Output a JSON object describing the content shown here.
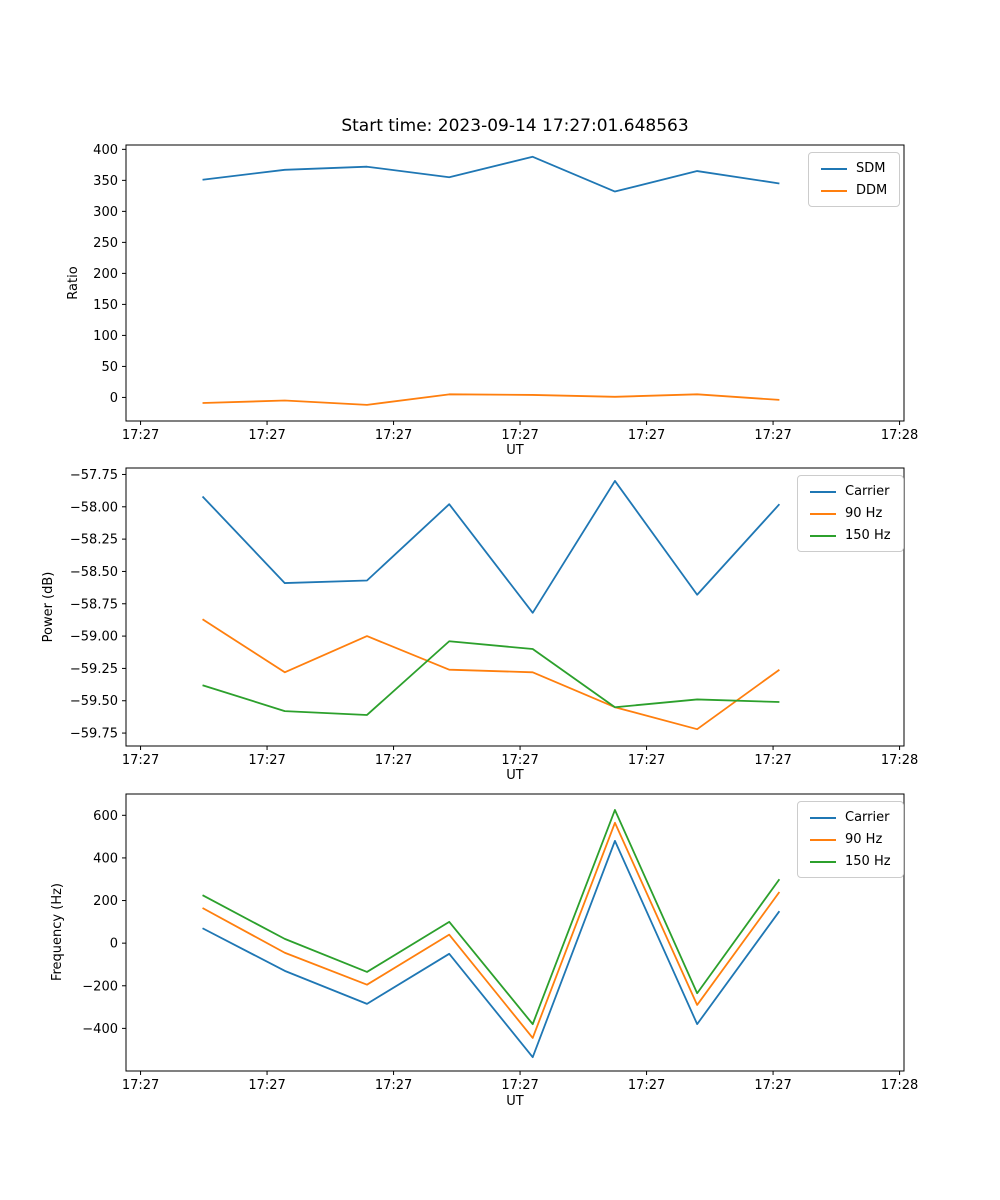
{
  "figure": {
    "title": "Start time: 2023-09-14 17:27:01.648563",
    "background": "#ffffff",
    "accent_colors": {
      "blue": "#1f77b4",
      "orange": "#ff7f0e",
      "green": "#2ca02c"
    }
  },
  "chart_data": [
    {
      "type": "line",
      "title": "Start time: 2023-09-14 17:27:01.648563",
      "xlabel": "UT",
      "ylabel": "Ratio",
      "grid": false,
      "legend_position": "upper right",
      "x_seconds_after_17_27_00": [
        4.9,
        11.4,
        17.9,
        24.4,
        31.0,
        37.5,
        44.0,
        50.5
      ],
      "xlim_seconds": [
        -1.15,
        60.35
      ],
      "x_ticks": {
        "values_seconds": [
          0,
          10,
          20,
          30,
          40,
          50,
          60
        ],
        "labels": [
          "17:27",
          "17:27",
          "17:27",
          "17:27",
          "17:27",
          "17:27",
          "17:28"
        ]
      },
      "y_ticks": {
        "values": [
          400,
          350,
          300,
          250,
          200,
          150,
          100,
          50,
          0
        ],
        "labels": [
          "400",
          "350",
          "300",
          "250",
          "200",
          "150",
          "100",
          "50",
          "0"
        ]
      },
      "ylim": [
        -38,
        407
      ],
      "series": [
        {
          "name": "SDM",
          "color": "#1f77b4",
          "values": [
            351,
            367,
            372,
            355,
            388,
            332,
            365,
            345
          ]
        },
        {
          "name": "DDM",
          "color": "#ff7f0e",
          "values": [
            -9,
            -5,
            -12,
            5,
            4,
            1,
            5,
            -4
          ]
        }
      ]
    },
    {
      "type": "line",
      "title": "",
      "xlabel": "UT",
      "ylabel": "Power (dB)",
      "grid": false,
      "legend_position": "upper right",
      "x_seconds_after_17_27_00": [
        4.9,
        11.4,
        17.9,
        24.4,
        31.0,
        37.5,
        44.0,
        50.5
      ],
      "xlim_seconds": [
        -1.15,
        60.35
      ],
      "x_ticks": {
        "values_seconds": [
          0,
          10,
          20,
          30,
          40,
          50,
          60
        ],
        "labels": [
          "17:27",
          "17:27",
          "17:27",
          "17:27",
          "17:27",
          "17:27",
          "17:28"
        ]
      },
      "y_ticks": {
        "values": [
          -57.75,
          -58.0,
          -58.25,
          -58.5,
          -58.75,
          -59.0,
          -59.25,
          -59.5,
          -59.75
        ],
        "labels": [
          "−57.75",
          "−58.00",
          "−58.25",
          "−58.50",
          "−58.75",
          "−59.00",
          "−59.25",
          "−59.50",
          "−59.75"
        ]
      },
      "ylim": [
        -59.85,
        -57.7
      ],
      "series": [
        {
          "name": "Carrier",
          "color": "#1f77b4",
          "values": [
            -57.92,
            -58.59,
            -58.57,
            -57.98,
            -58.82,
            -57.8,
            -58.68,
            -57.98
          ]
        },
        {
          "name": "90 Hz",
          "color": "#ff7f0e",
          "values": [
            -58.87,
            -59.28,
            -59.0,
            -59.26,
            -59.28,
            -59.55,
            -59.72,
            -59.26
          ]
        },
        {
          "name": "150 Hz",
          "color": "#2ca02c",
          "values": [
            -59.38,
            -59.58,
            -59.61,
            -59.04,
            -59.1,
            -59.55,
            -59.49,
            -59.51
          ]
        }
      ]
    },
    {
      "type": "line",
      "title": "",
      "xlabel": "UT",
      "ylabel": "Frequency (Hz)",
      "grid": false,
      "legend_position": "upper right",
      "x_seconds_after_17_27_00": [
        4.9,
        11.4,
        17.9,
        24.4,
        31.0,
        37.5,
        44.0,
        50.5
      ],
      "xlim_seconds": [
        -1.15,
        60.35
      ],
      "x_ticks": {
        "values_seconds": [
          0,
          10,
          20,
          30,
          40,
          50,
          60
        ],
        "labels": [
          "17:27",
          "17:27",
          "17:27",
          "17:27",
          "17:27",
          "17:27",
          "17:28"
        ]
      },
      "y_ticks": {
        "values": [
          600,
          400,
          200,
          0,
          -200,
          -400
        ],
        "labels": [
          "600",
          "400",
          "200",
          "0",
          "−200",
          "−400"
        ]
      },
      "ylim": [
        -600,
        700
      ],
      "series": [
        {
          "name": "Carrier",
          "color": "#1f77b4",
          "values": [
            70,
            -130,
            -285,
            -50,
            -535,
            480,
            -380,
            150
          ]
        },
        {
          "name": "90 Hz",
          "color": "#ff7f0e",
          "values": [
            165,
            -45,
            -195,
            40,
            -445,
            565,
            -290,
            240
          ]
        },
        {
          "name": "150 Hz",
          "color": "#2ca02c",
          "values": [
            225,
            20,
            -135,
            100,
            -380,
            625,
            -235,
            300
          ]
        }
      ]
    }
  ]
}
